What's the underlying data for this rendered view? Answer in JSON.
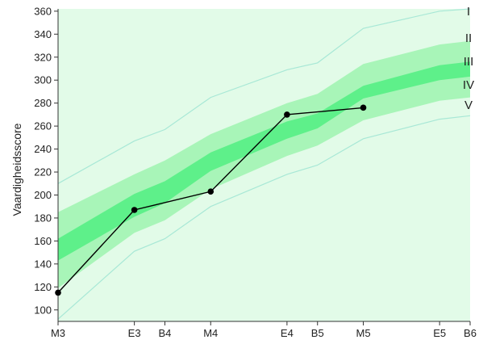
{
  "chart_data": {
    "type": "area",
    "title": "",
    "xlabel": "",
    "ylabel": "Vaardigheidsscore",
    "ylim": [
      90,
      362
    ],
    "y_ticks": [
      100,
      120,
      140,
      160,
      180,
      200,
      220,
      240,
      260,
      280,
      300,
      320,
      340,
      360
    ],
    "x_ticks": [
      {
        "label": "M3",
        "x": 0
      },
      {
        "label": "E3",
        "x": 5
      },
      {
        "label": "B4",
        "x": 7
      },
      {
        "label": "M4",
        "x": 10
      },
      {
        "label": "E4",
        "x": 15
      },
      {
        "label": "B5",
        "x": 17
      },
      {
        "label": "M5",
        "x": 20
      },
      {
        "label": "E5",
        "x": 25
      },
      {
        "label": "B6",
        "x": 27
      }
    ],
    "xlim": [
      0,
      27
    ],
    "grid": false,
    "level_labels": [
      "I",
      "II",
      "III",
      "IV",
      "V"
    ],
    "band_boundaries": {
      "x": [
        0,
        5,
        7,
        10,
        15,
        17,
        20,
        25,
        27
      ],
      "p10": [
        92,
        151,
        162,
        190,
        218,
        226,
        249,
        266,
        269
      ],
      "p25": [
        119,
        167,
        178,
        205,
        234,
        243,
        265,
        282,
        285
      ],
      "p40": [
        143,
        181,
        193,
        221,
        249,
        258,
        284,
        300,
        303
      ],
      "p60": [
        162,
        201,
        212,
        237,
        264,
        271,
        295,
        313,
        316
      ],
      "p75": [
        185,
        218,
        230,
        253,
        280,
        288,
        314,
        331,
        334
      ],
      "p90": [
        210,
        247,
        257,
        285,
        309,
        315,
        345,
        360,
        362
      ]
    },
    "series": [
      {
        "x": [
          0,
          5,
          10,
          15,
          20
        ],
        "values": [
          115,
          187,
          203,
          270,
          276
        ]
      }
    ],
    "colors": {
      "outer_band": "#e2fbe8",
      "mid_band": "#a8f5b8",
      "inner_band": "#5ef08a",
      "outer_line": "#a8e8d6",
      "series_line": "#000000",
      "axis": "#333333"
    }
  }
}
